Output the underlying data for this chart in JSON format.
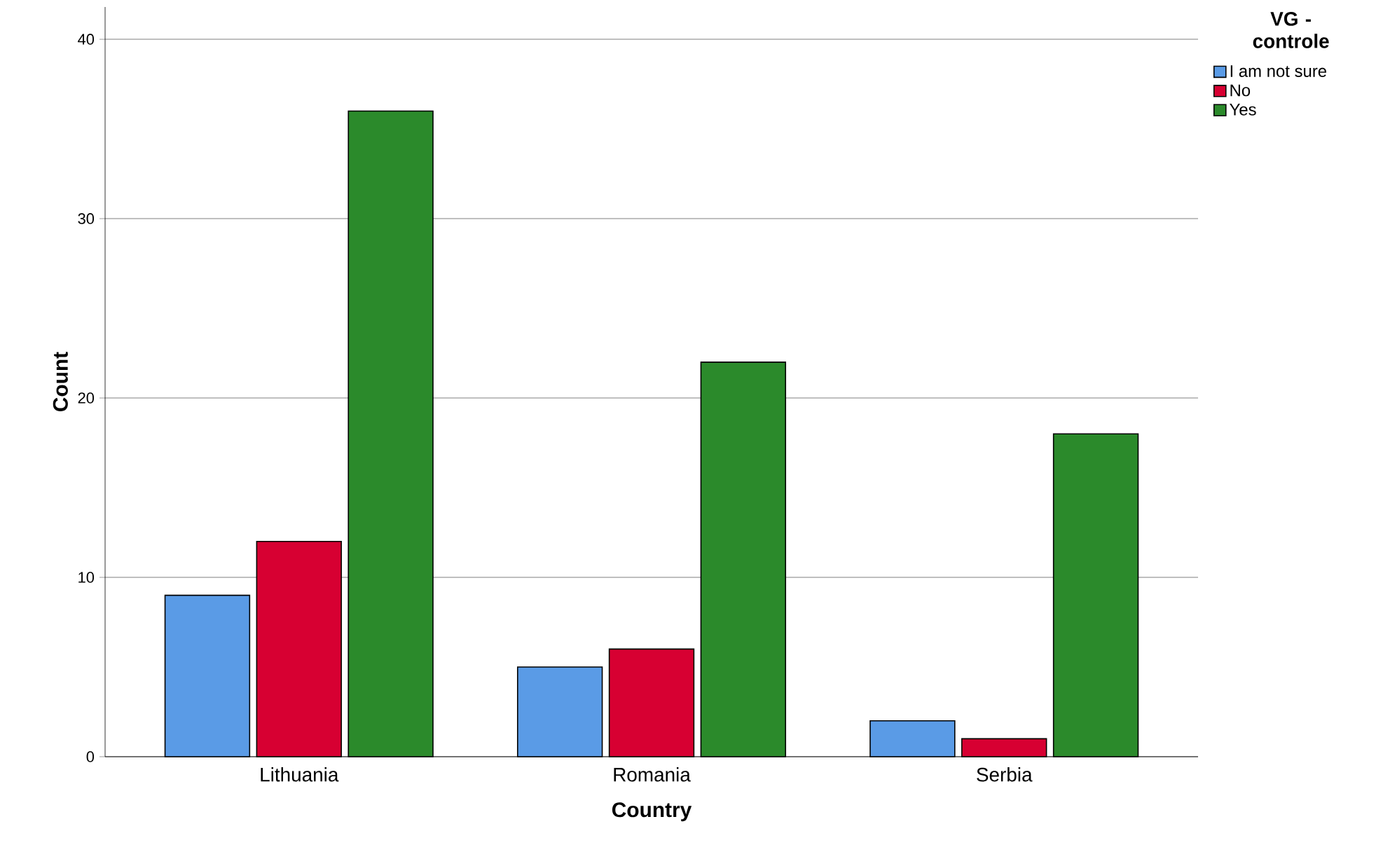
{
  "chart_data": {
    "type": "bar",
    "xlabel": "Country",
    "ylabel": "Count",
    "legend_title": "VG - controle",
    "categories": [
      "Lithuania",
      "Romania",
      "Serbia"
    ],
    "series": [
      {
        "name": "I am not sure",
        "color": "#5a9be6",
        "values": [
          9,
          5,
          2
        ]
      },
      {
        "name": "No",
        "color": "#d70032",
        "values": [
          12,
          6,
          1
        ]
      },
      {
        "name": "Yes",
        "color": "#2b8a2b",
        "values": [
          36,
          22,
          18
        ]
      }
    ],
    "ylim": [
      0,
      41.8
    ],
    "yticks": [
      0,
      10,
      20,
      30,
      40
    ],
    "grid": "y",
    "legend": "top right"
  }
}
